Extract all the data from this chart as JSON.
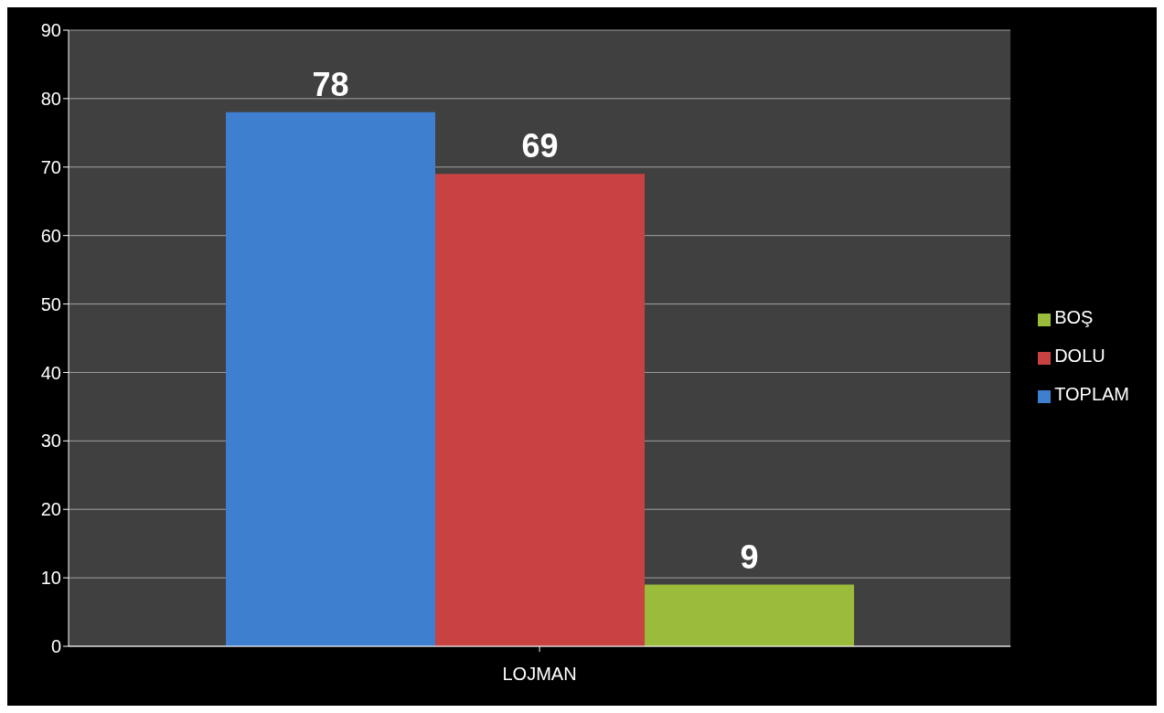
{
  "chart_data": {
    "type": "bar",
    "categories": [
      "LOJMAN"
    ],
    "series": [
      {
        "name": "TOPLAM",
        "color": "#3f7fd0",
        "values": [
          78
        ]
      },
      {
        "name": "DOLU",
        "color": "#c94242",
        "values": [
          69
        ]
      },
      {
        "name": "BOŞ",
        "color": "#9bbb3a",
        "values": [
          9
        ]
      }
    ],
    "ylim": [
      0,
      90
    ],
    "yticks": [
      0,
      10,
      20,
      30,
      40,
      50,
      60,
      70,
      80,
      90
    ],
    "grid": "y",
    "legend": "right",
    "data_labels": true
  }
}
